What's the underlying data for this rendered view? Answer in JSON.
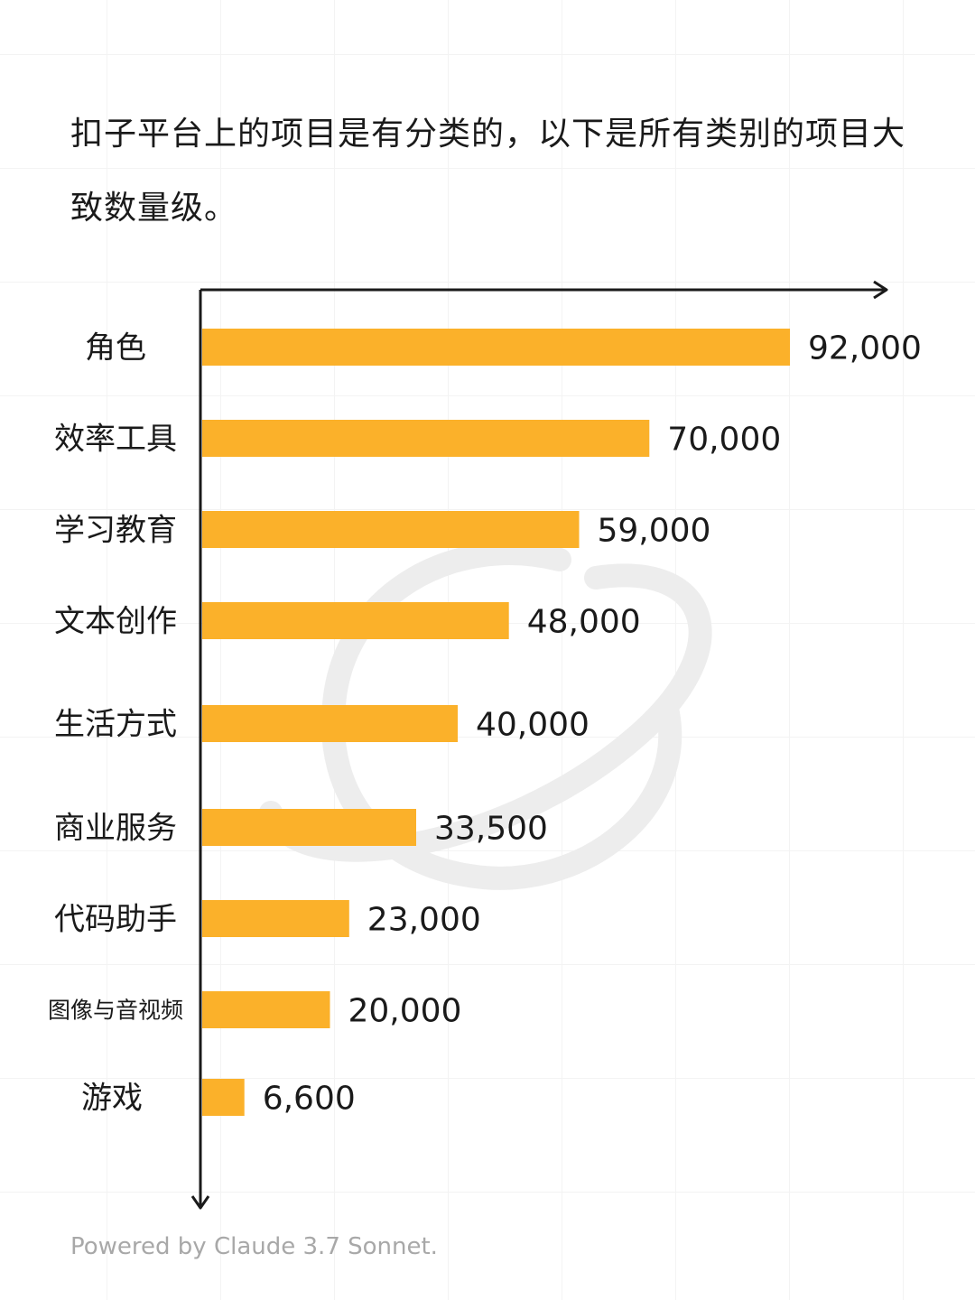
{
  "intro_text": "扣子平台上的项目是有分类的，以下是所有类别的项目大致数量级。",
  "footer": "Powered by Claude 3.7 Sonnet.",
  "colors": {
    "bar": "#FBB12A",
    "axis": "#1a1a1a",
    "watermark": "#eeeeee"
  },
  "icons": [
    "planet-watermark-icon",
    "x-axis-arrow-icon",
    "y-axis-arrow-icon"
  ],
  "chart_data": {
    "type": "bar",
    "orientation": "horizontal",
    "categories": [
      "角色",
      "效率工具",
      "学习教育",
      "文本创作",
      "生活方式",
      "商业服务",
      "代码助手",
      "图像与音视频",
      "游戏"
    ],
    "values": [
      92000,
      70000,
      59000,
      48000,
      40000,
      33500,
      23000,
      20000,
      6600
    ],
    "value_labels": [
      "92,000",
      "70,000",
      "59,000",
      "48,000",
      "40,000",
      "33,500",
      "23,000",
      "20,000",
      "6,600"
    ],
    "title": "",
    "xlabel": "",
    "ylabel": "",
    "xlim": [
      0,
      100000
    ],
    "grid": false,
    "legend": "none"
  }
}
